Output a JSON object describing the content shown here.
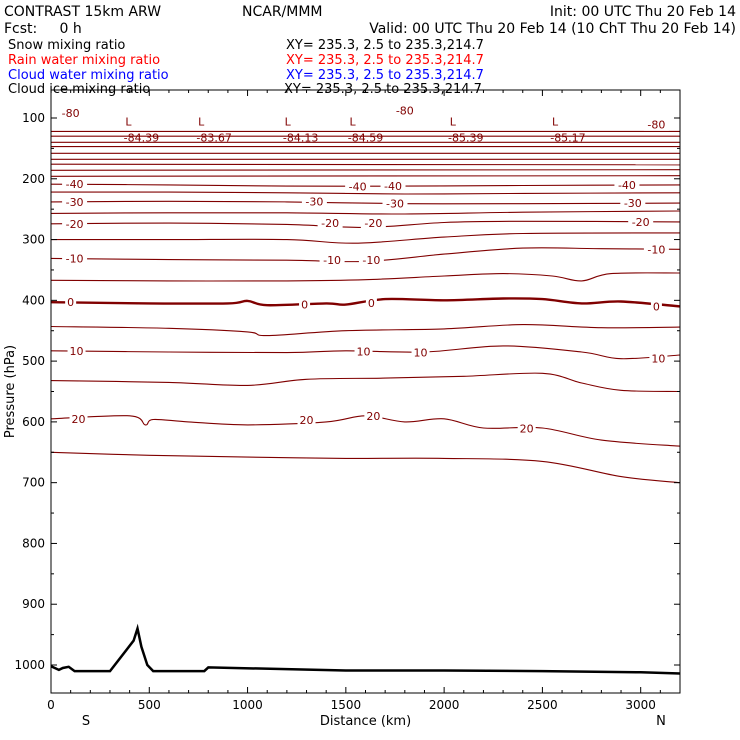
{
  "header": {
    "model": "CONTRAST 15km ARW",
    "org": "NCAR/MMM",
    "init": "Init: 00 UTC Thu 20 Feb 14",
    "fcst": "Fcst:     0 h",
    "valid": "Valid: 00 UTC Thu 20 Feb 14 (10 ChT Thu 20 Feb 14)"
  },
  "legend": [
    {
      "label": "Snow mixing ratio",
      "xy": "XY= 235.3,  2.5 to 235.3,214.7",
      "color": "#000000"
    },
    {
      "label": "Rain water mixing ratio",
      "xy": "XY= 235.3,  2.5 to 235.3,214.7",
      "color": "#ff0000"
    },
    {
      "label": "Cloud water mixing ratio",
      "xy": "XY= 235.3,  2.5 to 235.3,214.7",
      "color": "#0000ff"
    },
    {
      "label": "Cloud ice mixing ratio",
      "xy": "XY= 235.3,  2.5 to 235.3,214.7",
      "color": "#000000"
    }
  ],
  "colors": {
    "contour": "#800000",
    "terrain": "#000000",
    "axis": "#000000"
  },
  "chart_data": {
    "type": "line",
    "xlabel": "Distance (km)",
    "ylabel": "Pressure (hPa)",
    "xlim": [
      0,
      3200
    ],
    "ylim": [
      1050,
      70
    ],
    "x_ticks": [
      0,
      500,
      1000,
      1500,
      2000,
      2500,
      3000
    ],
    "y_ticks": [
      100,
      200,
      300,
      400,
      500,
      600,
      700,
      800,
      900,
      1000
    ],
    "end_labels": {
      "left": "S",
      "right": "N"
    },
    "grid": false,
    "contour_interval_c": 5,
    "contour_labels": [
      {
        "text": "-80",
        "x": 100,
        "p": 92
      },
      {
        "text": "-80",
        "x": 1800,
        "p": 88
      },
      {
        "text": "-80",
        "x": 3080,
        "p": 111
      },
      {
        "text": "-40",
        "x": 120,
        "p": 209
      },
      {
        "text": "-40",
        "x": 1560,
        "p": 213
      },
      {
        "text": "-40",
        "x": 1740,
        "p": 212
      },
      {
        "text": "-40",
        "x": 2930,
        "p": 210
      },
      {
        "text": "-30",
        "x": 120,
        "p": 238
      },
      {
        "text": "-30",
        "x": 1340,
        "p": 237
      },
      {
        "text": "-30",
        "x": 1750,
        "p": 241
      },
      {
        "text": "-30",
        "x": 2960,
        "p": 240
      },
      {
        "text": "-20",
        "x": 120,
        "p": 274
      },
      {
        "text": "-20",
        "x": 1420,
        "p": 273
      },
      {
        "text": "-20",
        "x": 1640,
        "p": 273
      },
      {
        "text": "-20",
        "x": 3000,
        "p": 271
      },
      {
        "text": "-10",
        "x": 120,
        "p": 331
      },
      {
        "text": "-10",
        "x": 1430,
        "p": 334
      },
      {
        "text": "-10",
        "x": 1630,
        "p": 334
      },
      {
        "text": "-10",
        "x": 3080,
        "p": 316
      },
      {
        "text": "0",
        "x": 100,
        "p": 403
      },
      {
        "text": "0",
        "x": 1290,
        "p": 407
      },
      {
        "text": "0",
        "x": 1630,
        "p": 404
      },
      {
        "text": "0",
        "x": 3080,
        "p": 410
      },
      {
        "text": "10",
        "x": 130,
        "p": 483
      },
      {
        "text": "10",
        "x": 1590,
        "p": 484
      },
      {
        "text": "10",
        "x": 1880,
        "p": 486
      },
      {
        "text": "10",
        "x": 3090,
        "p": 496
      },
      {
        "text": "20",
        "x": 140,
        "p": 595
      },
      {
        "text": "20",
        "x": 1300,
        "p": 597
      },
      {
        "text": "20",
        "x": 1640,
        "p": 590
      },
      {
        "text": "20",
        "x": 2420,
        "p": 611
      }
    ],
    "minima": [
      {
        "text": "-84.39",
        "x": 460,
        "p": 117,
        "marker": "L"
      },
      {
        "text": "-83.67",
        "x": 830,
        "p": 117,
        "marker": "L"
      },
      {
        "text": "-84.13",
        "x": 1270,
        "p": 117,
        "marker": "L"
      },
      {
        "text": "-84.59",
        "x": 1600,
        "p": 117,
        "marker": "L"
      },
      {
        "text": "-85.39",
        "x": 2110,
        "p": 117,
        "marker": "L"
      },
      {
        "text": "-85.17",
        "x": 2630,
        "p": 117,
        "marker": "L"
      }
    ],
    "contours": [
      {
        "level": "upper",
        "x": [
          0,
          3200
        ],
        "p": [
          122,
          122
        ]
      },
      {
        "level": "upper",
        "x": [
          0,
          3200
        ],
        "p": [
          130,
          130
        ]
      },
      {
        "level": "upper",
        "x": [
          0,
          3200
        ],
        "p": [
          140,
          140
        ]
      },
      {
        "level": "upper",
        "x": [
          0,
          3200
        ],
        "p": [
          147,
          147
        ]
      },
      {
        "level": "upper",
        "x": [
          0,
          3200
        ],
        "p": [
          158,
          158
        ]
      },
      {
        "level": "upper",
        "x": [
          0,
          3200
        ],
        "p": [
          168,
          168
        ]
      },
      {
        "level": "upper",
        "x": [
          0,
          3200
        ],
        "p": [
          176,
          177
        ]
      },
      {
        "level": "upper",
        "x": [
          0,
          3200
        ],
        "p": [
          186,
          185
        ]
      },
      {
        "level": "upper",
        "x": [
          0,
          3200
        ],
        "p": [
          196,
          195
        ]
      },
      {
        "level": "-40",
        "x": [
          0,
          600,
          1200,
          1800,
          2400,
          3200
        ],
        "p": [
          209,
          210,
          212,
          212,
          211,
          210
        ]
      },
      {
        "level": "-35",
        "x": [
          0,
          600,
          1200,
          1800,
          2400,
          3200
        ],
        "p": [
          222,
          222,
          223,
          225,
          224,
          223
        ]
      },
      {
        "level": "-30",
        "x": [
          0,
          600,
          1200,
          1800,
          2400,
          3200
        ],
        "p": [
          238,
          237,
          238,
          241,
          241,
          240
        ]
      },
      {
        "level": "-25",
        "x": [
          0,
          600,
          1200,
          1800,
          2400,
          3200
        ],
        "p": [
          257,
          256,
          256,
          258,
          255,
          253
        ]
      },
      {
        "level": "-20",
        "x": [
          0,
          600,
          1200,
          1600,
          2000,
          2400,
          3200
        ],
        "p": [
          274,
          273,
          275,
          280,
          272,
          270,
          271
        ]
      },
      {
        "level": "-15",
        "x": [
          0,
          600,
          1200,
          1550,
          2000,
          2400,
          3200
        ],
        "p": [
          300,
          300,
          300,
          306,
          296,
          290,
          289
        ]
      },
      {
        "level": "-10",
        "x": [
          0,
          600,
          1200,
          1600,
          2000,
          2400,
          2800,
          3200
        ],
        "p": [
          331,
          333,
          334,
          336,
          324,
          314,
          315,
          316
        ]
      },
      {
        "level": "-5",
        "x": [
          0,
          600,
          1200,
          1600,
          2000,
          2300,
          2550,
          2700,
          2850,
          3200
        ],
        "p": [
          367,
          368,
          368,
          366,
          360,
          356,
          360,
          368,
          356,
          355
        ]
      },
      {
        "level": "0",
        "x": [
          0,
          500,
          900,
          1000,
          1100,
          1400,
          1500,
          1700,
          2000,
          2300,
          2500,
          2700,
          2900,
          3200
        ],
        "p": [
          403,
          405,
          405,
          401,
          408,
          405,
          407,
          398,
          400,
          397,
          398,
          405,
          402,
          410
        ]
      },
      {
        "level": "5",
        "x": [
          0,
          600,
          1000,
          1100,
          1500,
          2000,
          2400,
          2800,
          3200
        ],
        "p": [
          443,
          446,
          452,
          458,
          450,
          447,
          440,
          445,
          444
        ]
      },
      {
        "level": "10",
        "x": [
          0,
          600,
          1200,
          1500,
          1900,
          2300,
          2700,
          2900,
          3200
        ],
        "p": [
          483,
          485,
          486,
          483,
          485,
          475,
          485,
          496,
          490
        ]
      },
      {
        "level": "15",
        "x": [
          0,
          600,
          1000,
          1300,
          1700,
          2100,
          2500,
          2700,
          2900,
          3200
        ],
        "p": [
          532,
          535,
          540,
          530,
          528,
          525,
          520,
          536,
          548,
          550
        ]
      },
      {
        "level": "20",
        "x": [
          0,
          400,
          480,
          520,
          700,
          1000,
          1400,
          1600,
          1800,
          2000,
          2200,
          2500,
          2800,
          3200
        ],
        "p": [
          595,
          590,
          605,
          596,
          600,
          605,
          600,
          590,
          600,
          595,
          610,
          610,
          630,
          640
        ]
      },
      {
        "level": "25",
        "x": [
          0,
          500,
          1000,
          1500,
          2000,
          2500,
          2900,
          3200
        ],
        "p": [
          650,
          655,
          658,
          660,
          660,
          665,
          690,
          700
        ]
      }
    ],
    "terrain": {
      "x": [
        0,
        40,
        60,
        90,
        120,
        300,
        420,
        440,
        460,
        490,
        520,
        780,
        800,
        1500,
        2000,
        2500,
        3000,
        3200
      ],
      "p": [
        1002,
        1008,
        1005,
        1003,
        1010,
        1010,
        960,
        940,
        970,
        1000,
        1010,
        1010,
        1004,
        1009,
        1009,
        1010,
        1012,
        1014
      ]
    }
  }
}
